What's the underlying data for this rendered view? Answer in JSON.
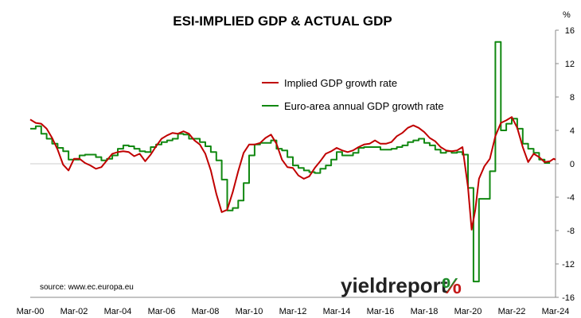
{
  "chart_data": {
    "type": "line",
    "title": "ESI-IMPLIED GDP & ACTUAL GDP",
    "y_unit": "%",
    "ylim": [
      -16,
      16
    ],
    "y_ticks": [
      16,
      12,
      8,
      4,
      0,
      -4,
      -8,
      -12,
      -16
    ],
    "x_ticks": [
      "Mar-00",
      "Mar-02",
      "Mar-04",
      "Mar-06",
      "Mar-08",
      "Mar-10",
      "Mar-12",
      "Mar-14",
      "Mar-16",
      "Mar-18",
      "Mar-20",
      "Mar-22",
      "Mar-24"
    ],
    "xlim": [
      "2000-03",
      "2024-03"
    ],
    "grid": false,
    "legend_position": "top-center",
    "series": [
      {
        "name": "Implied GDP growth rate",
        "color": "#c00000",
        "points": [
          [
            "2000-03",
            5.3
          ],
          [
            "2000-06",
            4.9
          ],
          [
            "2000-09",
            4.8
          ],
          [
            "2000-12",
            4.2
          ],
          [
            "2001-03",
            3.1
          ],
          [
            "2001-06",
            1.7
          ],
          [
            "2001-09",
            -0.1
          ],
          [
            "2001-12",
            -0.8
          ],
          [
            "2002-03",
            0.6
          ],
          [
            "2002-06",
            0.6
          ],
          [
            "2002-09",
            0.1
          ],
          [
            "2002-12",
            -0.2
          ],
          [
            "2003-03",
            -0.6
          ],
          [
            "2003-06",
            -0.4
          ],
          [
            "2003-09",
            0.4
          ],
          [
            "2003-12",
            1.2
          ],
          [
            "2004-03",
            1.4
          ],
          [
            "2004-06",
            1.5
          ],
          [
            "2004-09",
            1.4
          ],
          [
            "2004-12",
            0.9
          ],
          [
            "2005-03",
            1.2
          ],
          [
            "2005-06",
            0.3
          ],
          [
            "2005-09",
            1.1
          ],
          [
            "2005-12",
            2.1
          ],
          [
            "2006-03",
            3.0
          ],
          [
            "2006-06",
            3.4
          ],
          [
            "2006-09",
            3.7
          ],
          [
            "2006-12",
            3.6
          ],
          [
            "2007-03",
            3.9
          ],
          [
            "2007-06",
            3.6
          ],
          [
            "2007-09",
            2.8
          ],
          [
            "2007-12",
            2.3
          ],
          [
            "2008-03",
            1.2
          ],
          [
            "2008-06",
            -0.8
          ],
          [
            "2008-09",
            -3.6
          ],
          [
            "2008-12",
            -5.8
          ],
          [
            "2009-03",
            -5.5
          ],
          [
            "2009-06",
            -3.4
          ],
          [
            "2009-09",
            -0.9
          ],
          [
            "2009-12",
            1.3
          ],
          [
            "2010-03",
            2.3
          ],
          [
            "2010-06",
            2.3
          ],
          [
            "2010-09",
            2.5
          ],
          [
            "2010-12",
            3.1
          ],
          [
            "2011-03",
            3.5
          ],
          [
            "2011-06",
            2.4
          ],
          [
            "2011-09",
            0.5
          ],
          [
            "2011-12",
            -0.4
          ],
          [
            "2012-03",
            -0.5
          ],
          [
            "2012-06",
            -1.4
          ],
          [
            "2012-09",
            -1.8
          ],
          [
            "2012-12",
            -1.5
          ],
          [
            "2013-03",
            -0.5
          ],
          [
            "2013-06",
            0.3
          ],
          [
            "2013-09",
            1.2
          ],
          [
            "2013-12",
            1.5
          ],
          [
            "2014-03",
            1.9
          ],
          [
            "2014-06",
            1.6
          ],
          [
            "2014-09",
            1.4
          ],
          [
            "2014-12",
            1.6
          ],
          [
            "2015-03",
            2.0
          ],
          [
            "2015-06",
            2.3
          ],
          [
            "2015-09",
            2.4
          ],
          [
            "2015-12",
            2.8
          ],
          [
            "2016-03",
            2.4
          ],
          [
            "2016-06",
            2.4
          ],
          [
            "2016-09",
            2.6
          ],
          [
            "2016-12",
            3.3
          ],
          [
            "2017-03",
            3.7
          ],
          [
            "2017-06",
            4.3
          ],
          [
            "2017-09",
            4.6
          ],
          [
            "2017-12",
            4.3
          ],
          [
            "2018-03",
            3.8
          ],
          [
            "2018-06",
            3.1
          ],
          [
            "2018-09",
            2.7
          ],
          [
            "2018-12",
            2.0
          ],
          [
            "2019-03",
            1.6
          ],
          [
            "2019-06",
            1.5
          ],
          [
            "2019-09",
            1.6
          ],
          [
            "2019-12",
            2.0
          ],
          [
            "2020-03",
            -2.8
          ],
          [
            "2020-05",
            -7.9
          ],
          [
            "2020-07",
            -5.5
          ],
          [
            "2020-09",
            -1.8
          ],
          [
            "2020-12",
            -0.3
          ],
          [
            "2021-03",
            0.6
          ],
          [
            "2021-06",
            3.3
          ],
          [
            "2021-09",
            4.9
          ],
          [
            "2021-12",
            5.2
          ],
          [
            "2022-03",
            5.6
          ],
          [
            "2022-06",
            4.3
          ],
          [
            "2022-09",
            2.0
          ],
          [
            "2022-12",
            0.2
          ],
          [
            "2023-03",
            1.2
          ],
          [
            "2023-06",
            0.8
          ],
          [
            "2023-09",
            0.2
          ],
          [
            "2023-12",
            0.3
          ],
          [
            "2024-02",
            0.6
          ],
          [
            "2024-03",
            0.5
          ]
        ]
      },
      {
        "name": "Euro-area annual GDP growth rate",
        "color": "#118811",
        "step": true,
        "points": [
          [
            "2000-03",
            4.2
          ],
          [
            "2000-06",
            4.5
          ],
          [
            "2000-09",
            3.6
          ],
          [
            "2000-12",
            3.0
          ],
          [
            "2001-03",
            2.4
          ],
          [
            "2001-06",
            1.9
          ],
          [
            "2001-09",
            1.5
          ],
          [
            "2001-12",
            0.5
          ],
          [
            "2002-03",
            0.5
          ],
          [
            "2002-06",
            1.0
          ],
          [
            "2002-09",
            1.1
          ],
          [
            "2002-12",
            1.1
          ],
          [
            "2003-03",
            0.8
          ],
          [
            "2003-06",
            0.4
          ],
          [
            "2003-09",
            0.6
          ],
          [
            "2003-12",
            1.0
          ],
          [
            "2004-03",
            1.8
          ],
          [
            "2004-06",
            2.2
          ],
          [
            "2004-09",
            2.1
          ],
          [
            "2004-12",
            1.8
          ],
          [
            "2005-03",
            1.5
          ],
          [
            "2005-06",
            1.4
          ],
          [
            "2005-09",
            2.0
          ],
          [
            "2005-12",
            2.3
          ],
          [
            "2006-03",
            2.6
          ],
          [
            "2006-06",
            2.8
          ],
          [
            "2006-09",
            3.0
          ],
          [
            "2006-12",
            3.6
          ],
          [
            "2007-03",
            3.5
          ],
          [
            "2007-06",
            3.0
          ],
          [
            "2007-09",
            3.0
          ],
          [
            "2007-12",
            2.6
          ],
          [
            "2008-03",
            2.1
          ],
          [
            "2008-06",
            1.4
          ],
          [
            "2008-09",
            0.4
          ],
          [
            "2008-12",
            -1.9
          ],
          [
            "2009-03",
            -5.6
          ],
          [
            "2009-06",
            -5.3
          ],
          [
            "2009-09",
            -4.4
          ],
          [
            "2009-12",
            -2.3
          ],
          [
            "2010-03",
            1.0
          ],
          [
            "2010-06",
            2.3
          ],
          [
            "2010-09",
            2.5
          ],
          [
            "2010-12",
            2.5
          ],
          [
            "2011-03",
            2.8
          ],
          [
            "2011-06",
            1.8
          ],
          [
            "2011-09",
            1.6
          ],
          [
            "2011-12",
            0.8
          ],
          [
            "2012-03",
            -0.2
          ],
          [
            "2012-06",
            -0.5
          ],
          [
            "2012-09",
            -0.8
          ],
          [
            "2012-12",
            -1.0
          ],
          [
            "2013-03",
            -1.1
          ],
          [
            "2013-06",
            -0.6
          ],
          [
            "2013-09",
            -0.2
          ],
          [
            "2013-12",
            0.5
          ],
          [
            "2014-03",
            1.4
          ],
          [
            "2014-06",
            1.0
          ],
          [
            "2014-09",
            1.0
          ],
          [
            "2014-12",
            1.3
          ],
          [
            "2015-03",
            1.9
          ],
          [
            "2015-06",
            2.0
          ],
          [
            "2015-09",
            2.0
          ],
          [
            "2015-12",
            2.0
          ],
          [
            "2016-03",
            1.7
          ],
          [
            "2016-06",
            1.7
          ],
          [
            "2016-09",
            1.8
          ],
          [
            "2016-12",
            2.0
          ],
          [
            "2017-03",
            2.2
          ],
          [
            "2017-06",
            2.6
          ],
          [
            "2017-09",
            2.8
          ],
          [
            "2017-12",
            3.0
          ],
          [
            "2018-03",
            2.5
          ],
          [
            "2018-06",
            2.2
          ],
          [
            "2018-09",
            1.7
          ],
          [
            "2018-12",
            1.3
          ],
          [
            "2019-03",
            1.5
          ],
          [
            "2019-06",
            1.3
          ],
          [
            "2019-09",
            1.4
          ],
          [
            "2019-12",
            1.1
          ],
          [
            "2020-03",
            -2.9
          ],
          [
            "2020-06",
            -14.1
          ],
          [
            "2020-09",
            -4.2
          ],
          [
            "2020-12",
            -4.2
          ],
          [
            "2021-03",
            -0.9
          ],
          [
            "2021-06",
            14.6
          ],
          [
            "2021-09",
            4.0
          ],
          [
            "2021-12",
            4.8
          ],
          [
            "2022-03",
            5.4
          ],
          [
            "2022-06",
            4.2
          ],
          [
            "2022-09",
            2.4
          ],
          [
            "2022-12",
            1.8
          ],
          [
            "2023-03",
            1.3
          ],
          [
            "2023-06",
            0.5
          ],
          [
            "2023-09",
            0.1
          ],
          [
            "2023-12",
            0.1
          ]
        ]
      }
    ]
  },
  "source": "source: www.ec.europa.eu",
  "logo": {
    "word": "yieldreport",
    "symbol": "%",
    "symbol_colors": [
      "#1e8c2a",
      "#c41a1a"
    ]
  }
}
